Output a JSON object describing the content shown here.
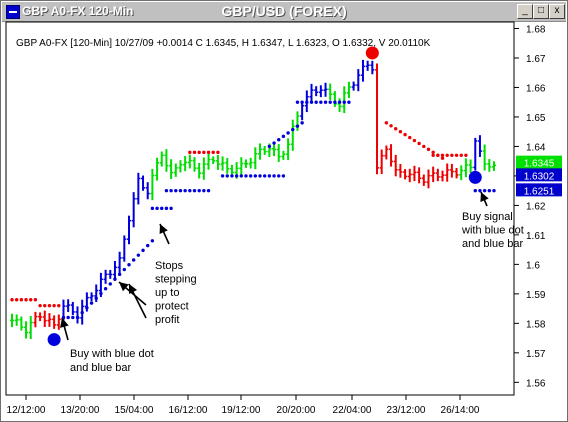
{
  "window": {
    "title": "GBP A0-FX 120-Min",
    "chart_title": "GBP/USD (FOREX)",
    "buttons": {
      "minimize": "_",
      "maximize": "□",
      "close": "x"
    }
  },
  "chart_data": {
    "type": "bar",
    "info_line": "GBP A0-FX [120-Min] 10/27/09 +0.0014 C 1.6345, H 1.6347, L 1.6323, O 1.6332, V 20.0110K",
    "x_ticks": [
      "12/12:00",
      "13/20:00",
      "15/04:00",
      "16/12:00",
      "19/12:00",
      "20/20:00",
      "22/04:00",
      "23/12:00",
      "26/14:00"
    ],
    "y_ticks": [
      1.56,
      1.57,
      1.58,
      1.59,
      1.6,
      1.61,
      1.62,
      1.63,
      1.64,
      1.65,
      1.66,
      1.67,
      1.68
    ],
    "ylim": [
      1.5557,
      1.6822
    ],
    "n_bars": 104,
    "bar_anchor_closes": [
      [
        0,
        1.581
      ],
      [
        3,
        1.578
      ],
      [
        6,
        1.583
      ],
      [
        9,
        1.579
      ],
      [
        11,
        1.586
      ],
      [
        14,
        1.583
      ],
      [
        17,
        1.59
      ],
      [
        20,
        1.596
      ],
      [
        23,
        1.601
      ],
      [
        25,
        1.616
      ],
      [
        27,
        1.628
      ],
      [
        29,
        1.625
      ],
      [
        32,
        1.638
      ],
      [
        34,
        1.63
      ],
      [
        36,
        1.635
      ],
      [
        38,
        1.634
      ],
      [
        40,
        1.632
      ],
      [
        43,
        1.636
      ],
      [
        46,
        1.632
      ],
      [
        49,
        1.633
      ],
      [
        52,
        1.637
      ],
      [
        55,
        1.64
      ],
      [
        57,
        1.636
      ],
      [
        59,
        1.641
      ],
      [
        62,
        1.655
      ],
      [
        64,
        1.658
      ],
      [
        66,
        1.66
      ],
      [
        68,
        1.657
      ],
      [
        70,
        1.654
      ],
      [
        72,
        1.66
      ],
      [
        74,
        1.664
      ],
      [
        76,
        1.668
      ],
      [
        77,
        1.667
      ],
      [
        78,
        1.632
      ],
      [
        80,
        1.64
      ],
      [
        82,
        1.631
      ],
      [
        84,
        1.631
      ],
      [
        86,
        1.63
      ],
      [
        88,
        1.629
      ],
      [
        90,
        1.63
      ],
      [
        92,
        1.631
      ],
      [
        94,
        1.631
      ],
      [
        96,
        1.632
      ],
      [
        98,
        1.633
      ],
      [
        99,
        1.643
      ],
      [
        101,
        1.633
      ],
      [
        103,
        1.6345
      ]
    ],
    "bar_colors": [
      {
        "from": 0,
        "to": 4,
        "color": "green"
      },
      {
        "from": 5,
        "to": 10,
        "color": "red"
      },
      {
        "from": 11,
        "to": 29,
        "color": "blue"
      },
      {
        "from": 30,
        "to": 34,
        "color": "green"
      },
      {
        "from": 35,
        "to": 42,
        "color": "green"
      },
      {
        "from": 43,
        "to": 53,
        "color": "green"
      },
      {
        "from": 54,
        "to": 61,
        "color": "green"
      },
      {
        "from": 62,
        "to": 67,
        "color": "blue"
      },
      {
        "from": 68,
        "to": 72,
        "color": "green"
      },
      {
        "from": 73,
        "to": 77,
        "color": "blue"
      },
      {
        "from": 78,
        "to": 95,
        "color": "red"
      },
      {
        "from": 96,
        "to": 98,
        "color": "green"
      },
      {
        "from": 99,
        "to": 100,
        "color": "blue"
      },
      {
        "from": 101,
        "to": 103,
        "color": "green"
      }
    ],
    "stop_dots": [
      {
        "from": 0,
        "to": 5,
        "level": 1.588,
        "color": "red"
      },
      {
        "from": 6,
        "to": 10,
        "level": 1.586,
        "color": "red"
      },
      {
        "from": 11,
        "to": 13,
        "level": 1.582,
        "color": "blue"
      },
      {
        "from": 14,
        "to": 30,
        "level": 1.6,
        "color": "blue",
        "rising": [
          1.582,
          1.608
        ]
      },
      {
        "from": 30,
        "to": 34,
        "level": 1.619,
        "color": "blue"
      },
      {
        "from": 33,
        "to": 42,
        "level": 1.625,
        "color": "blue"
      },
      {
        "from": 38,
        "to": 44,
        "level": 1.638,
        "color": "red"
      },
      {
        "from": 45,
        "to": 58,
        "level": 1.63,
        "color": "blue"
      },
      {
        "from": 55,
        "to": 62,
        "level": 1.642,
        "color": "blue",
        "rising": [
          1.64,
          1.648
        ]
      },
      {
        "from": 61,
        "to": 72,
        "level": 1.655,
        "color": "blue"
      },
      {
        "from": 80,
        "to": 92,
        "level": 1.645,
        "color": "red",
        "falling": [
          1.648,
          1.636
        ]
      },
      {
        "from": 90,
        "to": 97,
        "level": 1.637,
        "color": "red"
      },
      {
        "from": 99,
        "to": 103,
        "level": 1.625,
        "color": "blue"
      }
    ],
    "signals": [
      {
        "index": 9,
        "value": 1.5745,
        "color": "blue",
        "name": "buy-signal-dot-1"
      },
      {
        "index": 77,
        "value": 1.6717,
        "color": "red",
        "name": "sell-signal-dot"
      },
      {
        "index": 99,
        "value": 1.6295,
        "color": "blue",
        "name": "buy-signal-dot-2"
      }
    ],
    "price_labels": [
      {
        "text": "1.6345",
        "value": 1.6345,
        "bg": "#00e000",
        "fg": "#ffffff"
      },
      {
        "text": "1.6302",
        "value": 1.6302,
        "bg": "#0000cc",
        "fg": "#ffffff"
      },
      {
        "text": "1.6251",
        "value": 1.6251,
        "bg": "#0000cc",
        "fg": "#ffffff"
      }
    ],
    "annotations": [
      {
        "lines": [
          "Buy with blue dot",
          "and blue bar"
        ],
        "name": "annotation-buy-1"
      },
      {
        "lines": [
          "Stops",
          "stepping",
          "up to",
          "protect",
          "profit"
        ],
        "name": "annotation-stops"
      },
      {
        "lines": [
          "Buy signal",
          "with blue dot",
          "and blue bar"
        ],
        "name": "annotation-buy-2"
      }
    ]
  }
}
